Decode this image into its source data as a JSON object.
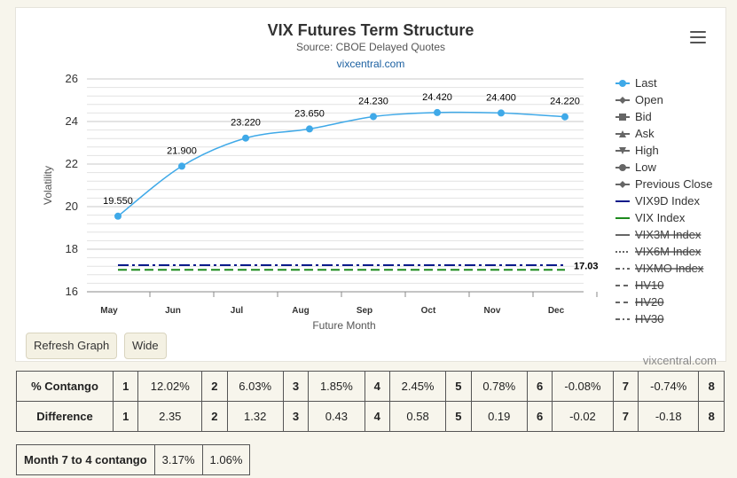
{
  "chart_title": "VIX Futures Term Structure",
  "chart_subtitle": "Source: CBOE Delayed Quotes",
  "source_link": "vixcentral.com",
  "credit": "vixcentral.com",
  "buttons": {
    "refresh": "Refresh Graph",
    "wide": "Wide"
  },
  "legend": [
    {
      "label": "Last",
      "symbol": "circle-line",
      "color": "#3fa9e8",
      "strike": false
    },
    {
      "label": "Open",
      "symbol": "diamond-line",
      "color": "#666666",
      "strike": false
    },
    {
      "label": "Bid",
      "symbol": "square-line",
      "color": "#666666",
      "strike": false
    },
    {
      "label": "Ask",
      "symbol": "triangle-line",
      "color": "#666666",
      "strike": false
    },
    {
      "label": "High",
      "symbol": "triangle-down-line",
      "color": "#666666",
      "strike": false
    },
    {
      "label": "Low",
      "symbol": "circle-line",
      "color": "#666666",
      "strike": false
    },
    {
      "label": "Previous Close",
      "symbol": "diamond-line",
      "color": "#666666",
      "strike": false
    },
    {
      "label": "VIX9D Index",
      "symbol": "line",
      "color": "#0a1a8a",
      "strike": false
    },
    {
      "label": "VIX Index",
      "symbol": "line",
      "color": "#1e8a1e",
      "strike": false
    },
    {
      "label": "VIX3M Index",
      "symbol": "line",
      "color": "#666666",
      "strike": true
    },
    {
      "label": "VIX6M Index",
      "symbol": "dotted",
      "color": "#666666",
      "strike": true
    },
    {
      "label": "VIXMO Index",
      "symbol": "dashdot",
      "color": "#666666",
      "strike": true
    },
    {
      "label": "HV10",
      "symbol": "dash",
      "color": "#666666",
      "strike": true
    },
    {
      "label": "HV20",
      "symbol": "dash",
      "color": "#666666",
      "strike": true
    },
    {
      "label": "HV30",
      "symbol": "dashdot",
      "color": "#666666",
      "strike": true
    }
  ],
  "chart_data": {
    "type": "line",
    "xlabel": "Future Month",
    "ylabel": "Volatility",
    "categories": [
      "May",
      "Jun",
      "Jul",
      "Aug",
      "Sep",
      "Oct",
      "Nov",
      "Dec"
    ],
    "ylim": [
      16,
      26
    ],
    "yticks": [
      16,
      18,
      20,
      22,
      24,
      26
    ],
    "grid": true,
    "legend_position": "right",
    "series": [
      {
        "name": "Last",
        "values": [
          19.55,
          21.9,
          23.22,
          23.65,
          24.23,
          24.42,
          24.4,
          24.22
        ],
        "labels": [
          "19.550",
          "21.900",
          "23.220",
          "23.650",
          "24.230",
          "24.420",
          "24.400",
          "24.220"
        ],
        "color": "#3fa9e8"
      },
      {
        "name": "VIX9D Index",
        "value": 17.25,
        "color": "#0a1a8a",
        "style": "dashdot"
      },
      {
        "name": "VIX Index",
        "value": 17.03,
        "label": "17.03",
        "color": "#1e8a1e",
        "style": "dash"
      }
    ]
  },
  "contango_table": {
    "rows": [
      {
        "label": "% Contango",
        "cells": [
          [
            "1",
            "12.02%"
          ],
          [
            "2",
            "6.03%"
          ],
          [
            "3",
            "1.85%"
          ],
          [
            "4",
            "2.45%"
          ],
          [
            "5",
            "0.78%"
          ],
          [
            "6",
            "-0.08%"
          ],
          [
            "7",
            "-0.74%"
          ],
          [
            "8",
            ""
          ]
        ]
      },
      {
        "label": "Difference",
        "cells": [
          [
            "1",
            "2.35"
          ],
          [
            "2",
            "1.32"
          ],
          [
            "3",
            "0.43"
          ],
          [
            "4",
            "0.58"
          ],
          [
            "5",
            "0.19"
          ],
          [
            "6",
            "-0.02"
          ],
          [
            "7",
            "-0.18"
          ],
          [
            "8",
            ""
          ]
        ]
      }
    ]
  },
  "month_contango": {
    "label": "Month 7 to 4 contango",
    "values": [
      "3.17%",
      "1.06%"
    ]
  }
}
